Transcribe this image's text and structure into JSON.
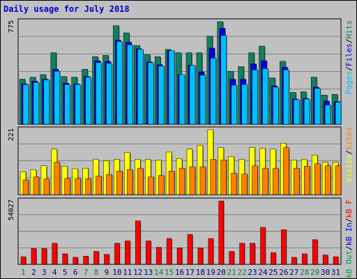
{
  "title": "Daily usage for July 2018",
  "colors": {
    "background": "#c0c0c0",
    "panel": "#c0c0c0",
    "gridline": "#808080",
    "title": "#0000cc",
    "hits": "#108060",
    "files": "#0000e0",
    "pages": "#00c0ff",
    "visits": "#ffff00",
    "sites": "#ff8000",
    "kb_in": "#0000e0",
    "kb_out": "#00a060",
    "kb_f": "#ff0000",
    "weekday_label": "#000080",
    "weekend_label": "#008040"
  },
  "chart_data": [
    {
      "type": "bar",
      "panel": "top",
      "max_label": "775",
      "ylim": [
        0,
        775
      ],
      "legend_position": "right",
      "legend": [
        "Pages",
        "Files",
        "Hits"
      ],
      "categories": [
        "1",
        "2",
        "3",
        "4",
        "5",
        "6",
        "7",
        "8",
        "9",
        "10",
        "11",
        "12",
        "13",
        "14",
        "15",
        "16",
        "17",
        "18",
        "19",
        "20",
        "21",
        "22",
        "23",
        "24",
        "25",
        "26",
        "27",
        "28",
        "29",
        "30",
        "31"
      ],
      "weekend_days": [
        "1",
        "7",
        "8",
        "14",
        "15",
        "21",
        "22",
        "28",
        "29"
      ],
      "series": [
        {
          "name": "Hits",
          "values": [
            340,
            355,
            375,
            540,
            360,
            355,
            415,
            510,
            520,
            745,
            690,
            595,
            525,
            510,
            565,
            540,
            540,
            540,
            665,
            775,
            400,
            435,
            540,
            590,
            350,
            475,
            240,
            245,
            355,
            220,
            225
          ]
        },
        {
          "name": "Files",
          "values": [
            305,
            325,
            340,
            415,
            310,
            305,
            360,
            480,
            475,
            635,
            620,
            570,
            470,
            450,
            555,
            375,
            445,
            395,
            575,
            725,
            340,
            340,
            455,
            480,
            290,
            430,
            190,
            195,
            280,
            175,
            170
          ]
        },
        {
          "name": "Pages",
          "values": [
            300,
            315,
            335,
            400,
            300,
            300,
            355,
            465,
            460,
            625,
            600,
            565,
            465,
            440,
            555,
            375,
            445,
            370,
            500,
            670,
            295,
            300,
            410,
            420,
            280,
            410,
            185,
            190,
            270,
            145,
            165
          ]
        }
      ]
    },
    {
      "type": "bar",
      "panel": "middle",
      "max_label": "221",
      "ylim": [
        0,
        221
      ],
      "legend_position": "right",
      "legend": [
        "Visits",
        "Sites"
      ],
      "series": [
        {
          "name": "Visits",
          "values": [
            78,
            85,
            98,
            155,
            97,
            88,
            90,
            120,
            115,
            120,
            143,
            120,
            120,
            117,
            145,
            123,
            155,
            168,
            221,
            160,
            130,
            120,
            160,
            158,
            155,
            175,
            118,
            120,
            135,
            110,
            110
          ]
        },
        {
          "name": "Sites",
          "values": [
            50,
            60,
            53,
            110,
            55,
            55,
            54,
            63,
            68,
            80,
            85,
            90,
            60,
            65,
            80,
            90,
            95,
            95,
            120,
            118,
            73,
            70,
            98,
            90,
            90,
            160,
            90,
            97,
            105,
            98,
            98
          ]
        }
      ]
    },
    {
      "type": "bar",
      "panel": "bottom",
      "max_label": "54027",
      "ylim": [
        0,
        54027
      ],
      "legend_position": "right",
      "legend": [
        "kB F",
        "kB In",
        "kB Out"
      ],
      "series": [
        {
          "name": "kB F",
          "values": [
            6500,
            13500,
            13500,
            18000,
            9000,
            6000,
            7000,
            11000,
            8500,
            18000,
            20000,
            37000,
            20000,
            14500,
            22000,
            14000,
            25500,
            14000,
            22000,
            54000,
            11000,
            18000,
            18000,
            31500,
            10000,
            29500,
            6000,
            9000,
            21000,
            8000,
            6500
          ]
        }
      ]
    }
  ]
}
